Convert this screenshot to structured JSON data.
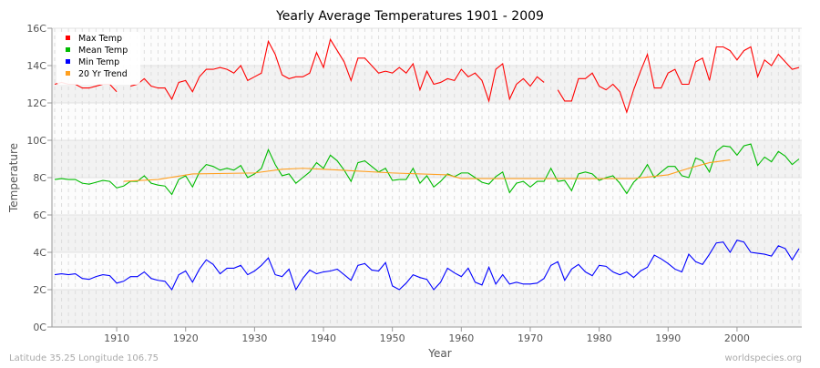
{
  "chart_data": {
    "type": "line",
    "title": "Yearly Average Temperatures 1901 - 2009",
    "xlabel": "Year",
    "ylabel": "Temperature",
    "xlim": [
      1901,
      2009
    ],
    "ylim": [
      0,
      16
    ],
    "x_ticks": [
      1910,
      1920,
      1930,
      1940,
      1950,
      1960,
      1970,
      1980,
      1990,
      2000
    ],
    "y_ticks": [
      "0C",
      "2C",
      "4C",
      "6C",
      "8C",
      "10C",
      "12C",
      "14C",
      "16C"
    ],
    "grid": true,
    "legend_position": "top-left",
    "x_start": 1901,
    "series": [
      {
        "name": "Max Temp",
        "color": "#ff0000",
        "values": [
          13.0,
          13.1,
          13.0,
          13.0,
          12.8,
          12.8,
          12.9,
          13.0,
          13.0,
          12.6,
          null,
          12.9,
          13.0,
          13.3,
          12.9,
          12.8,
          12.8,
          12.2,
          13.1,
          13.2,
          12.6,
          13.4,
          13.8,
          13.8,
          13.9,
          13.8,
          13.6,
          14.0,
          13.2,
          13.4,
          13.6,
          15.3,
          14.6,
          13.5,
          13.3,
          13.4,
          13.4,
          13.6,
          14.7,
          13.9,
          15.4,
          14.8,
          14.2,
          13.2,
          14.4,
          14.4,
          14.0,
          13.6,
          13.7,
          13.6,
          13.9,
          13.6,
          14.1,
          12.7,
          13.7,
          13.0,
          13.1,
          13.3,
          13.2,
          13.8,
          13.4,
          13.6,
          13.2,
          12.1,
          13.8,
          14.1,
          12.2,
          13.0,
          13.3,
          12.9,
          13.4,
          13.1,
          null,
          12.7,
          12.1,
          12.1,
          13.3,
          13.3,
          13.6,
          12.9,
          12.7,
          13.0,
          12.6,
          11.5,
          12.7,
          13.7,
          14.6,
          12.8,
          12.8,
          13.6,
          13.8,
          13.0,
          13.0,
          14.2,
          14.4,
          13.2,
          15.0,
          15.0,
          14.8,
          14.3,
          14.8,
          15.0,
          13.4,
          14.3,
          14.0,
          14.6,
          14.2,
          13.8,
          13.9
        ]
      },
      {
        "name": "Mean Temp",
        "color": "#00bb00",
        "values": [
          7.9,
          7.95,
          7.9,
          7.9,
          7.7,
          7.65,
          7.75,
          7.85,
          7.8,
          7.45,
          7.55,
          7.8,
          7.8,
          8.1,
          7.7,
          7.6,
          7.55,
          7.1,
          7.9,
          8.1,
          7.5,
          8.3,
          8.7,
          8.6,
          8.4,
          8.5,
          8.4,
          8.65,
          8.0,
          8.2,
          8.5,
          9.5,
          8.7,
          8.1,
          8.2,
          7.7,
          8.0,
          8.3,
          8.8,
          8.5,
          9.2,
          8.9,
          8.4,
          7.8,
          8.8,
          8.9,
          8.6,
          8.3,
          8.5,
          7.85,
          7.9,
          7.9,
          8.5,
          7.7,
          8.1,
          7.5,
          7.8,
          8.2,
          8.05,
          8.25,
          8.25,
          8.0,
          7.75,
          7.65,
          8.05,
          8.3,
          7.2,
          7.7,
          7.8,
          7.5,
          7.8,
          7.8,
          8.5,
          7.8,
          7.85,
          7.3,
          8.2,
          8.3,
          8.2,
          7.85,
          8.0,
          8.1,
          7.7,
          7.15,
          7.75,
          8.1,
          8.7,
          8.0,
          8.3,
          8.6,
          8.6,
          8.1,
          8.0,
          9.05,
          8.9,
          8.3,
          9.4,
          9.7,
          9.65,
          9.2,
          9.7,
          9.8,
          8.65,
          9.1,
          8.85,
          9.4,
          9.15,
          8.7,
          9.0
        ]
      },
      {
        "name": "Min Temp",
        "color": "#0000ff",
        "values": [
          2.8,
          2.85,
          2.8,
          2.85,
          2.6,
          2.55,
          2.7,
          2.8,
          2.75,
          2.35,
          2.45,
          2.7,
          2.7,
          2.95,
          2.6,
          2.5,
          2.45,
          2.0,
          2.8,
          3.0,
          2.4,
          3.1,
          3.6,
          3.35,
          2.85,
          3.15,
          3.15,
          3.3,
          2.8,
          3.0,
          3.3,
          3.7,
          2.8,
          2.7,
          3.1,
          2.0,
          2.6,
          3.05,
          2.85,
          2.95,
          3.0,
          3.1,
          2.8,
          2.5,
          3.3,
          3.4,
          3.05,
          3.0,
          3.45,
          2.2,
          2.0,
          2.35,
          2.8,
          2.65,
          2.55,
          2.0,
          2.4,
          3.15,
          2.9,
          2.7,
          3.15,
          2.4,
          2.25,
          3.2,
          2.3,
          2.8,
          2.3,
          2.4,
          2.3,
          2.3,
          2.35,
          2.6,
          3.3,
          3.5,
          2.5,
          3.1,
          3.35,
          2.95,
          2.75,
          3.3,
          3.25,
          2.95,
          2.8,
          2.95,
          2.65,
          3.0,
          3.2,
          3.85,
          3.65,
          3.4,
          3.1,
          2.95,
          3.9,
          3.5,
          3.35,
          3.9,
          4.5,
          4.55,
          4.0,
          4.65,
          4.55,
          4.0,
          3.95,
          3.9,
          3.8,
          4.35,
          4.2,
          3.6,
          4.2
        ]
      },
      {
        "name": "20 Yr Trend",
        "color": "#ffa020",
        "points": [
          [
            1911,
            7.8
          ],
          [
            1916,
            7.9
          ],
          [
            1921,
            8.2
          ],
          [
            1930,
            8.25
          ],
          [
            1934,
            8.45
          ],
          [
            1937,
            8.5
          ],
          [
            1940,
            8.45
          ],
          [
            1945,
            8.35
          ],
          [
            1950,
            8.25
          ],
          [
            1958,
            8.15
          ],
          [
            1960,
            7.95
          ],
          [
            1978,
            7.95
          ],
          [
            1985,
            7.95
          ],
          [
            1990,
            8.15
          ],
          [
            1993,
            8.5
          ],
          [
            1996,
            8.8
          ],
          [
            1999,
            8.95
          ]
        ]
      }
    ]
  },
  "footer": {
    "location": "Latitude 35.25 Longitude 106.75",
    "source": "worldspecies.org"
  }
}
